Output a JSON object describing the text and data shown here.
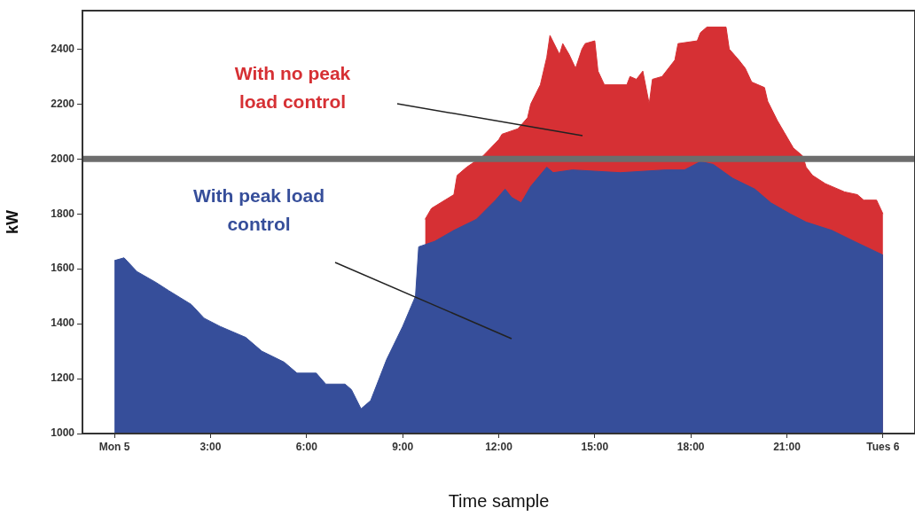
{
  "chart_data": {
    "type": "area",
    "xlabel": "Time sample",
    "ylabel": "kW",
    "xlim": [
      -1,
      25
    ],
    "ylim": [
      1000,
      2540
    ],
    "xticks": [
      {
        "value": 0,
        "label": "Mon 5"
      },
      {
        "value": 3,
        "label": "3:00"
      },
      {
        "value": 6,
        "label": "6:00"
      },
      {
        "value": 9,
        "label": "9:00"
      },
      {
        "value": 12,
        "label": "12:00"
      },
      {
        "value": 15,
        "label": "15:00"
      },
      {
        "value": 18,
        "label": "18:00"
      },
      {
        "value": 21,
        "label": "21:00"
      },
      {
        "value": 24,
        "label": "Tues 6"
      }
    ],
    "yticks": [
      1000,
      1200,
      1400,
      1600,
      1800,
      2000,
      2200,
      2400
    ],
    "grid": false,
    "legend": false,
    "series": [
      {
        "name": "With no peak load control",
        "color": "#d63034",
        "x": [
          9.7,
          9.9,
          10.6,
          10.7,
          11.0,
          11.5,
          12.0,
          12.1,
          12.6,
          12.9,
          13.0,
          13.3,
          13.5,
          13.6,
          13.9,
          14.0,
          14.2,
          14.4,
          14.6,
          14.7,
          15.0,
          15.1,
          15.3,
          16.0,
          16.1,
          16.3,
          16.5,
          16.7,
          16.8,
          17.1,
          17.5,
          17.6,
          18.2,
          18.3,
          18.5,
          19.1,
          19.2,
          19.5,
          19.7,
          19.9,
          20.3,
          20.4,
          20.7,
          20.9,
          21.2,
          21.5,
          21.6,
          21.8,
          22.2,
          22.8,
          23.2,
          23.4,
          23.8,
          24.0
        ],
        "values": [
          1780,
          1820,
          1870,
          1940,
          1970,
          2010,
          2070,
          2090,
          2110,
          2150,
          2200,
          2270,
          2370,
          2450,
          2380,
          2420,
          2380,
          2330,
          2400,
          2420,
          2430,
          2320,
          2270,
          2270,
          2300,
          2290,
          2320,
          2200,
          2290,
          2300,
          2360,
          2420,
          2430,
          2460,
          2480,
          2480,
          2400,
          2360,
          2330,
          2280,
          2260,
          2210,
          2140,
          2100,
          2040,
          2010,
          1970,
          1940,
          1910,
          1880,
          1870,
          1850,
          1850,
          1800
        ]
      },
      {
        "name": "With peak load control",
        "color": "#364e9a",
        "x": [
          0.0,
          0.3,
          0.7,
          1.3,
          1.7,
          2.4,
          2.8,
          3.3,
          4.1,
          4.6,
          5.3,
          5.7,
          6.3,
          6.6,
          7.2,
          7.4,
          7.7,
          8.0,
          8.5,
          9.0,
          9.4,
          9.5,
          10.0,
          10.6,
          11.3,
          11.9,
          12.2,
          12.4,
          12.7,
          13.0,
          13.5,
          13.7,
          14.3,
          15.8,
          17.2,
          17.8,
          18.3,
          18.7,
          19.3,
          20.0,
          20.5,
          21.1,
          21.6,
          22.4,
          23.1,
          24.0
        ],
        "values": [
          1630,
          1640,
          1590,
          1550,
          1520,
          1470,
          1420,
          1390,
          1350,
          1300,
          1260,
          1220,
          1220,
          1180,
          1180,
          1160,
          1090,
          1120,
          1270,
          1390,
          1500,
          1680,
          1700,
          1740,
          1780,
          1850,
          1890,
          1860,
          1840,
          1900,
          1970,
          1950,
          1960,
          1950,
          1960,
          1960,
          1990,
          1980,
          1930,
          1890,
          1840,
          1800,
          1770,
          1740,
          1700,
          1650
        ]
      }
    ],
    "ref_lines": [
      {
        "axis": "y",
        "value": 2000,
        "color": "#6d6d6d"
      }
    ]
  }
}
